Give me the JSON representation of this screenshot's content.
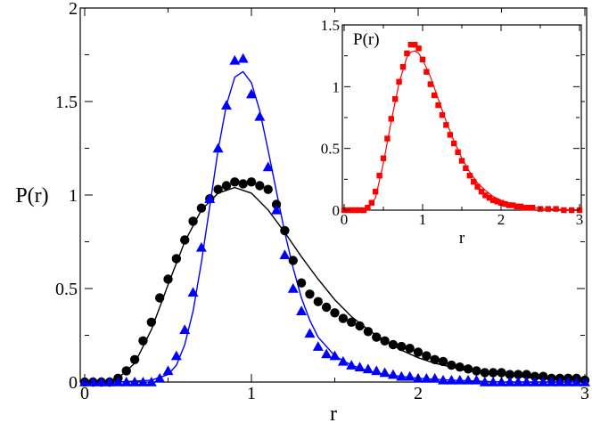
{
  "chart_data": [
    {
      "id": "main",
      "type": "scatter",
      "xlabel": "r",
      "ylabel": "P(r)",
      "xlim": [
        0,
        3
      ],
      "ylim": [
        0,
        2
      ],
      "x_ticks": [
        "0",
        "1",
        "2",
        "3"
      ],
      "y_ticks": [
        "0",
        "0.5",
        "1",
        "1.5",
        "2"
      ],
      "x_tick_values": [
        0,
        1,
        2,
        3
      ],
      "y_tick_values": [
        0,
        0.5,
        1,
        1.5,
        2
      ],
      "series": [
        {
          "name": "black circles",
          "marker": "circle",
          "color": "#000000",
          "x": [
            0.0,
            0.05,
            0.1,
            0.15,
            0.2,
            0.25,
            0.3,
            0.35,
            0.4,
            0.45,
            0.5,
            0.55,
            0.6,
            0.65,
            0.7,
            0.75,
            0.8,
            0.85,
            0.9,
            0.95,
            1.0,
            1.05,
            1.1,
            1.15,
            1.2,
            1.25,
            1.3,
            1.35,
            1.4,
            1.45,
            1.5,
            1.55,
            1.6,
            1.65,
            1.7,
            1.75,
            1.8,
            1.85,
            1.9,
            1.95,
            2.0,
            2.05,
            2.1,
            2.15,
            2.2,
            2.25,
            2.3,
            2.35,
            2.4,
            2.45,
            2.5,
            2.55,
            2.6,
            2.65,
            2.7,
            2.75,
            2.8,
            2.85,
            2.9,
            2.95,
            3.0
          ],
          "y": [
            0.0,
            0.0,
            0.0,
            0.0,
            0.02,
            0.06,
            0.12,
            0.22,
            0.32,
            0.45,
            0.55,
            0.66,
            0.76,
            0.86,
            0.93,
            0.98,
            1.03,
            1.05,
            1.07,
            1.06,
            1.07,
            1.05,
            1.03,
            0.95,
            0.81,
            0.65,
            0.53,
            0.47,
            0.43,
            0.4,
            0.37,
            0.34,
            0.32,
            0.3,
            0.27,
            0.24,
            0.22,
            0.2,
            0.19,
            0.18,
            0.16,
            0.14,
            0.12,
            0.11,
            0.09,
            0.08,
            0.07,
            0.06,
            0.05,
            0.05,
            0.05,
            0.04,
            0.04,
            0.04,
            0.03,
            0.03,
            0.02,
            0.02,
            0.02,
            0.02,
            0.01
          ]
        },
        {
          "name": "black fit",
          "style": "line",
          "color": "#000000",
          "x": [
            0.0,
            0.1,
            0.2,
            0.3,
            0.4,
            0.5,
            0.6,
            0.7,
            0.8,
            0.9,
            1.0,
            1.1,
            1.2,
            1.3,
            1.4,
            1.5,
            1.6,
            1.7,
            1.8,
            1.9,
            2.0,
            2.1,
            2.2,
            2.3,
            2.4,
            2.5,
            2.6,
            2.7,
            2.8,
            2.9,
            3.0
          ],
          "y": [
            0.0,
            0.0,
            0.02,
            0.1,
            0.28,
            0.52,
            0.75,
            0.92,
            1.01,
            1.04,
            1.01,
            0.92,
            0.8,
            0.67,
            0.55,
            0.44,
            0.35,
            0.28,
            0.22,
            0.17,
            0.13,
            0.1,
            0.08,
            0.06,
            0.05,
            0.04,
            0.03,
            0.02,
            0.015,
            0.01,
            0.008
          ]
        },
        {
          "name": "blue triangles",
          "marker": "triangle",
          "color": "#0000ff",
          "x": [
            0.0,
            0.05,
            0.1,
            0.15,
            0.2,
            0.25,
            0.3,
            0.35,
            0.4,
            0.45,
            0.5,
            0.55,
            0.6,
            0.65,
            0.7,
            0.75,
            0.8,
            0.85,
            0.9,
            0.95,
            1.0,
            1.05,
            1.1,
            1.15,
            1.2,
            1.25,
            1.3,
            1.35,
            1.4,
            1.45,
            1.5,
            1.55,
            1.6,
            1.65,
            1.7,
            1.75,
            1.8,
            1.85,
            1.9,
            1.95,
            2.0,
            2.05,
            2.1,
            2.15,
            2.2,
            2.25,
            2.3,
            2.35,
            2.4,
            2.45,
            2.5,
            2.55,
            2.6,
            2.65,
            2.7,
            2.75,
            2.8,
            2.85,
            2.9,
            2.95,
            3.0
          ],
          "y": [
            0.0,
            0.0,
            0.0,
            0.0,
            0.0,
            0.0,
            0.0,
            0.0,
            0.0,
            0.02,
            0.06,
            0.14,
            0.28,
            0.48,
            0.72,
            0.98,
            1.25,
            1.48,
            1.72,
            1.73,
            1.54,
            1.42,
            1.15,
            0.92,
            0.68,
            0.5,
            0.38,
            0.26,
            0.19,
            0.15,
            0.14,
            0.11,
            0.09,
            0.08,
            0.07,
            0.06,
            0.05,
            0.04,
            0.03,
            0.03,
            0.02,
            0.02,
            0.02,
            0.01,
            0.01,
            0.01,
            0.01,
            0.01,
            0.0,
            0.0,
            0.0,
            0.0,
            0.0,
            0.0,
            0.0,
            0.0,
            0.0,
            0.0,
            0.0,
            0.0,
            0.0
          ]
        },
        {
          "name": "blue fit",
          "style": "line",
          "color": "#0000ff",
          "x": [
            0.0,
            0.2,
            0.4,
            0.5,
            0.55,
            0.6,
            0.65,
            0.7,
            0.75,
            0.8,
            0.85,
            0.9,
            0.95,
            1.0,
            1.05,
            1.1,
            1.15,
            1.2,
            1.25,
            1.3,
            1.35,
            1.4,
            1.5,
            1.6,
            1.7,
            1.8,
            2.0,
            2.2,
            2.5,
            3.0
          ],
          "y": [
            0.0,
            0.0,
            0.01,
            0.04,
            0.09,
            0.2,
            0.38,
            0.64,
            0.94,
            1.24,
            1.48,
            1.63,
            1.66,
            1.6,
            1.45,
            1.24,
            1.02,
            0.8,
            0.61,
            0.45,
            0.33,
            0.24,
            0.14,
            0.09,
            0.06,
            0.04,
            0.02,
            0.01,
            0.0,
            0.0
          ]
        }
      ]
    },
    {
      "id": "inset",
      "type": "scatter",
      "xlabel": "r",
      "ylabel": "P(r)",
      "xlim": [
        0,
        3
      ],
      "ylim": [
        0,
        1.5
      ],
      "x_ticks": [
        "0",
        "1",
        "2",
        "3"
      ],
      "y_ticks": [
        "0",
        "0.5",
        "1",
        "1.5"
      ],
      "x_tick_values": [
        0,
        1,
        2,
        3
      ],
      "y_tick_values": [
        0,
        0.5,
        1,
        1.5
      ],
      "series": [
        {
          "name": "red squares",
          "marker": "square",
          "color": "#ff0000",
          "x": [
            0.0,
            0.05,
            0.1,
            0.15,
            0.2,
            0.25,
            0.3,
            0.35,
            0.4,
            0.45,
            0.5,
            0.55,
            0.6,
            0.65,
            0.7,
            0.75,
            0.8,
            0.85,
            0.9,
            0.95,
            1.0,
            1.05,
            1.1,
            1.15,
            1.2,
            1.25,
            1.3,
            1.35,
            1.4,
            1.45,
            1.5,
            1.55,
            1.6,
            1.65,
            1.7,
            1.75,
            1.8,
            1.85,
            1.9,
            1.95,
            2.0,
            2.05,
            2.1,
            2.15,
            2.2,
            2.25,
            2.3,
            2.35,
            2.4,
            2.5,
            2.6,
            2.7,
            2.8,
            2.9,
            3.0
          ],
          "y": [
            0.0,
            0.0,
            0.0,
            0.0,
            0.0,
            0.0,
            0.02,
            0.06,
            0.15,
            0.28,
            0.42,
            0.58,
            0.74,
            0.9,
            1.04,
            1.16,
            1.27,
            1.34,
            1.34,
            1.31,
            1.22,
            1.12,
            1.02,
            0.93,
            0.85,
            0.77,
            0.69,
            0.61,
            0.54,
            0.47,
            0.4,
            0.34,
            0.28,
            0.23,
            0.19,
            0.15,
            0.12,
            0.1,
            0.08,
            0.07,
            0.06,
            0.05,
            0.04,
            0.04,
            0.03,
            0.03,
            0.02,
            0.02,
            0.02,
            0.01,
            0.01,
            0.01,
            0.0,
            0.0,
            0.0
          ]
        },
        {
          "name": "red fit",
          "style": "line",
          "color": "#ff0000",
          "x": [
            0.0,
            0.2,
            0.3,
            0.4,
            0.5,
            0.6,
            0.7,
            0.8,
            0.85,
            0.9,
            0.95,
            1.0,
            1.1,
            1.2,
            1.3,
            1.4,
            1.5,
            1.6,
            1.7,
            1.8,
            1.9,
            2.0,
            2.2,
            2.4,
            2.6,
            3.0
          ],
          "y": [
            0.0,
            0.0,
            0.01,
            0.1,
            0.38,
            0.72,
            1.03,
            1.24,
            1.28,
            1.29,
            1.27,
            1.22,
            1.08,
            0.9,
            0.72,
            0.56,
            0.42,
            0.31,
            0.22,
            0.16,
            0.11,
            0.08,
            0.04,
            0.02,
            0.01,
            0.0
          ]
        }
      ]
    }
  ]
}
